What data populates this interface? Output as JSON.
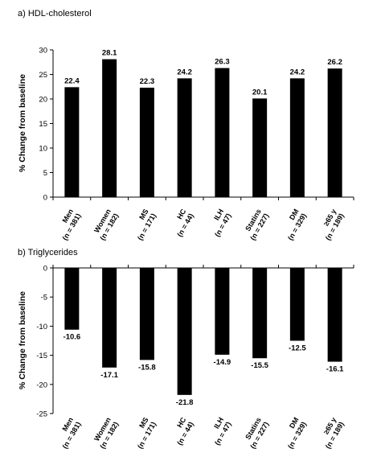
{
  "chart_data": [
    {
      "type": "bar",
      "title": "a) HDL-cholesterol",
      "ylabel": "% Change from baseline",
      "ylim": [
        0,
        30
      ],
      "yticks": [
        "0",
        "5",
        "10",
        "15",
        "20",
        "25",
        "30"
      ],
      "grid": false,
      "bar_color": "#000000",
      "categories": [
        {
          "name": "Men",
          "n": "(n = 381)"
        },
        {
          "name": "Women",
          "n": "(n = 182)"
        },
        {
          "name": "MS",
          "n": "(n = 171)"
        },
        {
          "name": "HC",
          "n": "(n = 44)"
        },
        {
          "name": "ILH",
          "n": "(n = 47)"
        },
        {
          "name": "Statins",
          "n": "(n = 227)"
        },
        {
          "name": "DM",
          "n": "(n = 329)"
        },
        {
          "name": "≥65 y",
          "n": "(n = 189)"
        }
      ],
      "values": [
        22.4,
        28.1,
        22.3,
        24.2,
        26.3,
        20.1,
        24.2,
        26.2
      ],
      "value_labels": [
        "22.4",
        "28.1",
        "22.3",
        "24.2",
        "26.3",
        "20.1",
        "24.2",
        "26.2"
      ]
    },
    {
      "type": "bar",
      "title": "b) Triglycerides",
      "ylabel": "% Change from baseline",
      "ylim": [
        -25,
        0
      ],
      "yticks": [
        "-25",
        "-20",
        "-15",
        "-10",
        "-5",
        "0"
      ],
      "grid": false,
      "bar_color": "#000000",
      "categories": [
        {
          "name": "Men",
          "n": "(n = 381)"
        },
        {
          "name": "Women",
          "n": "(n = 182)"
        },
        {
          "name": "MS",
          "n": "(n = 171)"
        },
        {
          "name": "HC",
          "n": "(n = 44)"
        },
        {
          "name": "ILH",
          "n": "(n = 47)"
        },
        {
          "name": "Statins",
          "n": "(n = 227)"
        },
        {
          "name": "DM",
          "n": "(n = 329)"
        },
        {
          "name": "≥65 y",
          "n": "(n = 189)"
        }
      ],
      "values": [
        -10.6,
        -17.1,
        -15.8,
        -21.8,
        -14.9,
        -15.5,
        -12.5,
        -16.1
      ],
      "value_labels": [
        "-10.6",
        "-17.1",
        "-15.8",
        "-21.8",
        "-14.9",
        "-15.5",
        "-12.5",
        "-16.1"
      ]
    }
  ]
}
